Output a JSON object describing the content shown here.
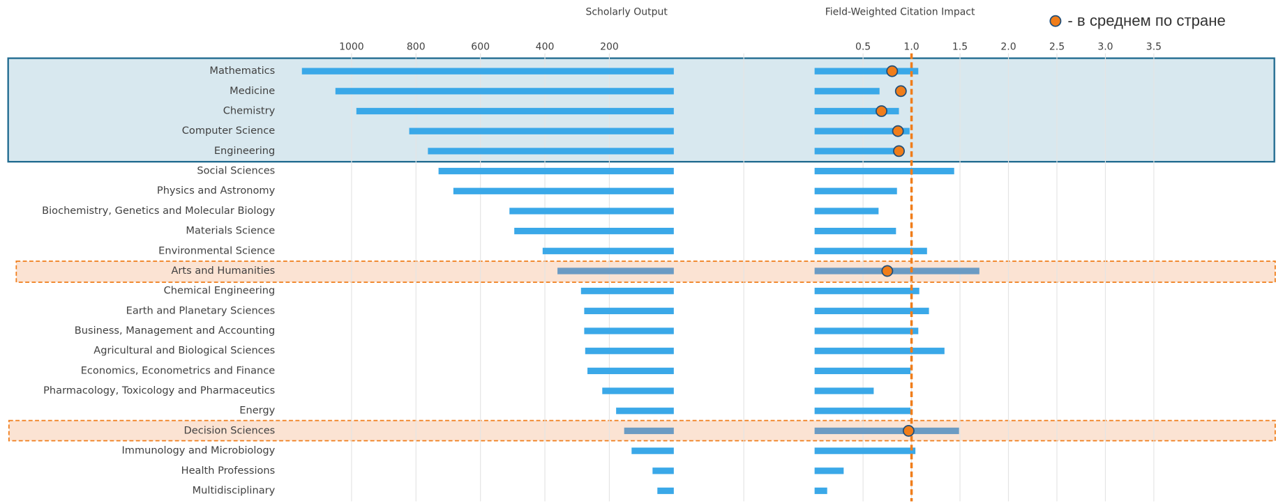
{
  "chart_data": {
    "type": "bar",
    "orientation": "horizontal",
    "categories": [
      "Mathematics",
      "Medicine",
      "Chemistry",
      "Computer Science",
      "Engineering",
      "Social Sciences",
      "Physics and Astronomy",
      "Biochemistry, Genetics and Molecular Biology",
      "Materials Science",
      "Environmental Science",
      "Arts and Humanities",
      "Chemical Engineering",
      "Earth and Planetary Sciences",
      "Business, Management and Accounting",
      "Agricultural and Biological Sciences",
      "Economics, Econometrics and Finance",
      "Pharmacology, Toxicology and Pharmaceutics",
      "Energy",
      "Decision Sciences",
      "Immunology and Microbiology",
      "Health Professions",
      "Multidisciplinary"
    ],
    "panels": [
      {
        "title": "Scholarly Output",
        "color": "#3aa8e8",
        "highlight_color": "#6b9bc3",
        "values": [
          1154,
          1050,
          985,
          821,
          763,
          730,
          684,
          510,
          495,
          407,
          361,
          288,
          278,
          278,
          275,
          268,
          222,
          179,
          154,
          131,
          66,
          51
        ],
        "xlim": [
          0,
          1207
        ],
        "reversed": true,
        "xticks": [
          200,
          400,
          600,
          800,
          1000
        ],
        "grid": true
      },
      {
        "title": "Field-Weighted Citation Impact",
        "color": "#3aa8e8",
        "highlight_color": "#6b9bc3",
        "values": [
          1.07,
          0.67,
          0.87,
          0.98,
          0.87,
          1.44,
          0.85,
          0.66,
          0.84,
          1.16,
          1.7,
          1.08,
          1.18,
          1.07,
          1.34,
          0.99,
          0.61,
          0.99,
          1.49,
          1.04,
          0.3,
          0.13
        ],
        "xlim": [
          0,
          4.76
        ],
        "reversed": false,
        "xticks": [
          0.5,
          {
            "value": 1,
            "label": "1.0"
          },
          1.5,
          {
            "value": 2,
            "label": "2.0"
          },
          2.5,
          {
            "value": 3,
            "label": "3.0"
          },
          3.5
        ],
        "grid": true,
        "reference_line": {
          "value": 1,
          "color": "#f07d1a"
        },
        "average": {
          "name": "- в среднем по стране",
          "color": "#f07d1a",
          "edge_color": "#1f4e79",
          "values": [
            0.8,
            0.89,
            0.69,
            0.86,
            0.87,
            null,
            null,
            null,
            null,
            null,
            0.75,
            null,
            null,
            null,
            null,
            null,
            null,
            null,
            0.97,
            null,
            null,
            null
          ]
        }
      }
    ]
  }
}
